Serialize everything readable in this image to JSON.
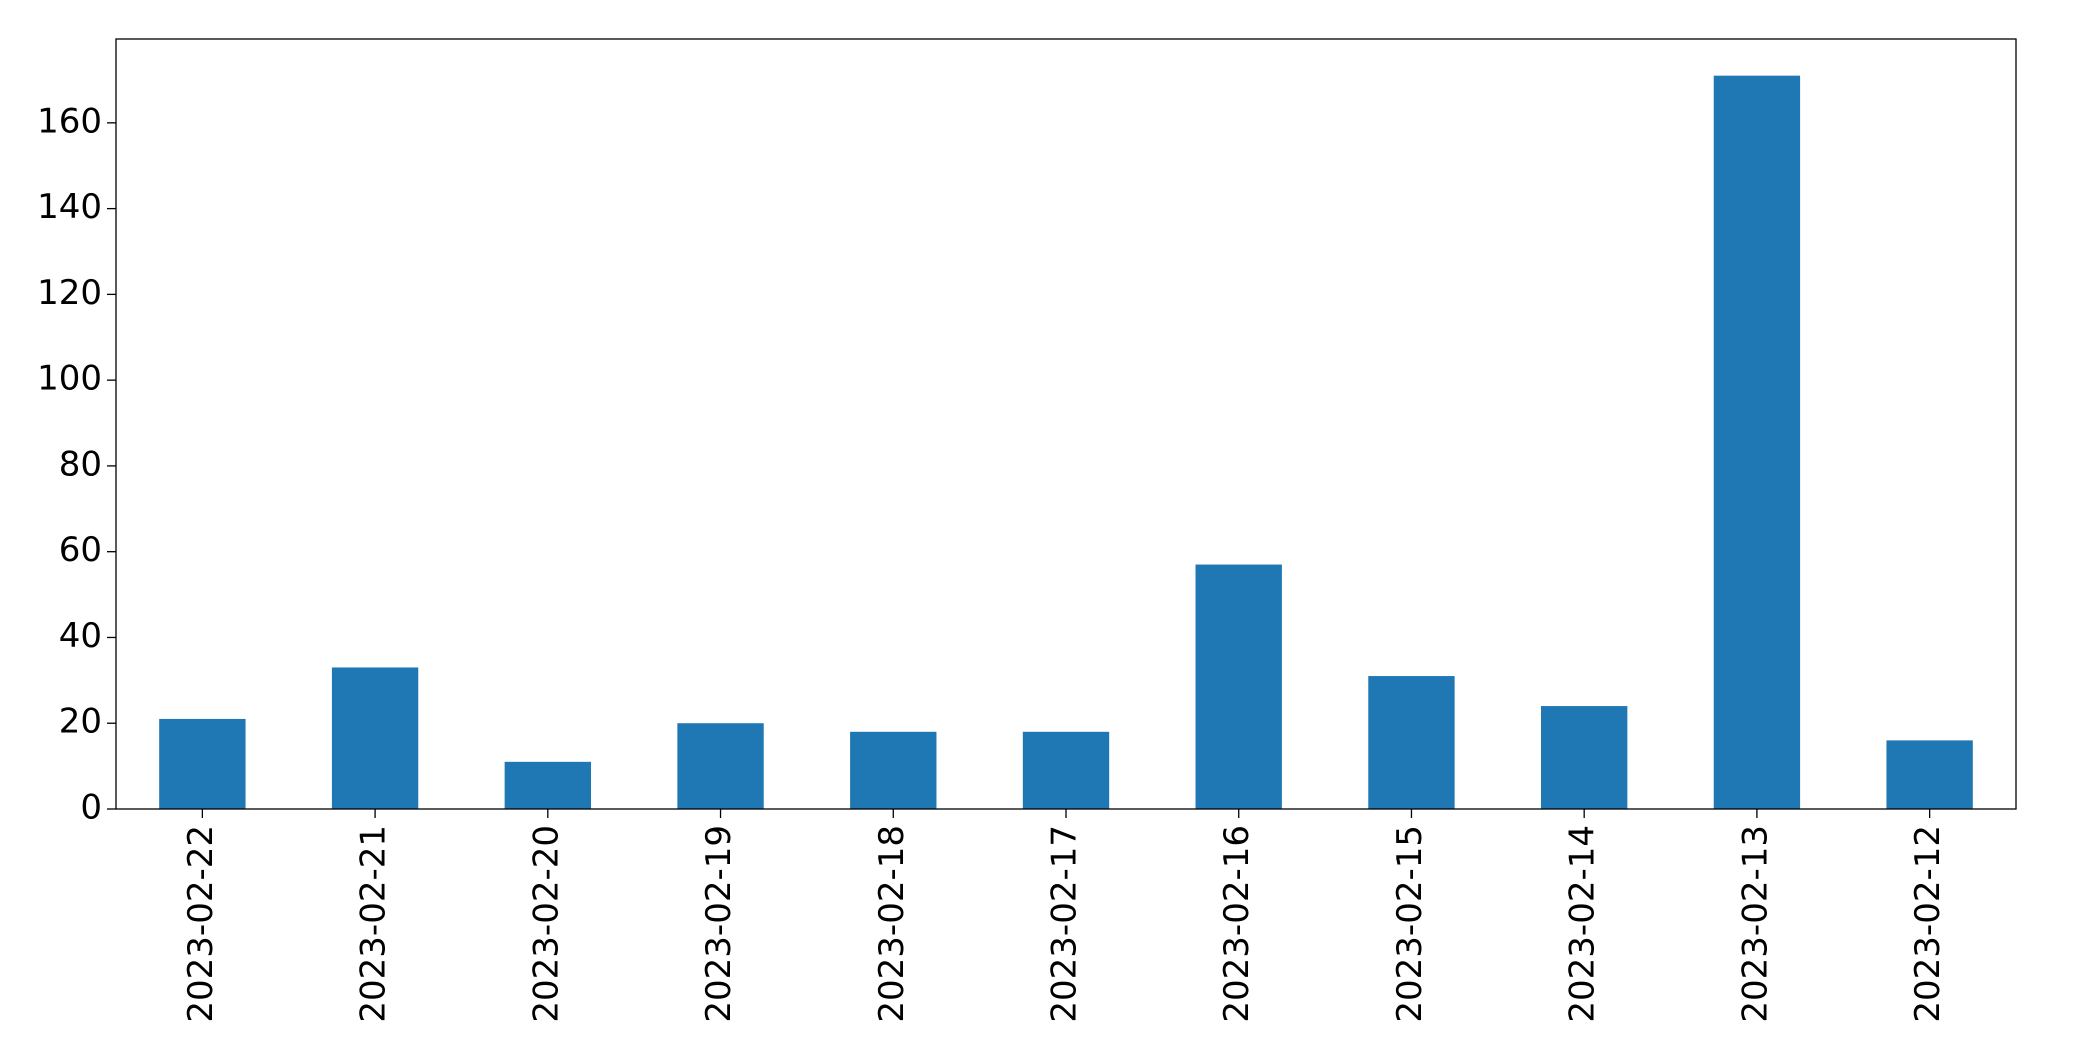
{
  "chart_data": {
    "type": "bar",
    "categories": [
      "2023-02-22",
      "2023-02-21",
      "2023-02-20",
      "2023-02-19",
      "2023-02-18",
      "2023-02-17",
      "2023-02-16",
      "2023-02-15",
      "2023-02-14",
      "2023-02-13",
      "2023-02-12"
    ],
    "values": [
      21,
      33,
      11,
      20,
      18,
      18,
      57,
      31,
      24,
      171,
      16
    ],
    "color": "#1f77b4",
    "ylim": [
      0,
      179.55
    ],
    "yticks": [
      0,
      20,
      40,
      60,
      80,
      100,
      120,
      140,
      160
    ],
    "grid": false
  }
}
